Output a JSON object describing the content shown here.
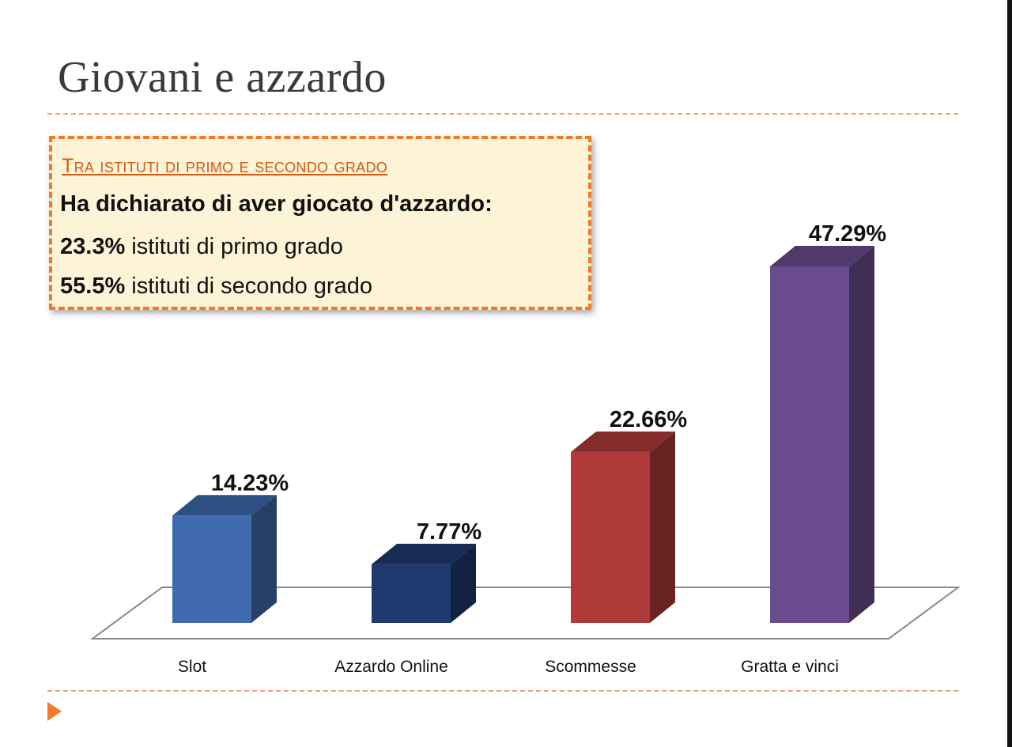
{
  "slide": {
    "title": "Giovani e azzardo"
  },
  "callout": {
    "heading": "Tra istituti di primo e secondo grado",
    "line1": "Ha dichiarato di aver giocato d'azzardo:",
    "line2_value": "23.3%",
    "line2_text": " istituti di primo grado",
    "line3_value": "55.5%",
    "line3_text": " istituti di secondo grado"
  },
  "chart_data": {
    "type": "bar",
    "categories": [
      "Slot",
      "Azzardo Online",
      "Scommesse",
      "Gratta e vinci"
    ],
    "values": [
      14.23,
      7.77,
      22.66,
      47.29
    ],
    "value_labels": [
      "14.23%",
      "7.77%",
      "22.66%",
      "47.29%"
    ],
    "colors": [
      "#3f6aad",
      "#1e3a6e",
      "#b03a3a",
      "#6a4c8e"
    ],
    "title": "",
    "xlabel": "",
    "ylabel": "",
    "ylim": [
      0,
      50
    ],
    "grid": false,
    "legend": "none"
  }
}
